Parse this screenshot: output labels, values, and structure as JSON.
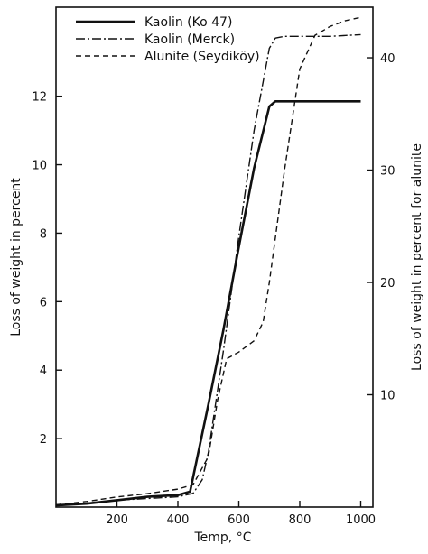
{
  "chart_data": {
    "type": "line",
    "xlabel": "Temp, °C",
    "ylabel_left": "Loss of weight in percent",
    "ylabel_right": "Loss of weight in percent for alunite",
    "xlim": [
      0,
      1040
    ],
    "ylim_left": [
      0,
      14.6
    ],
    "ylim_right": [
      0,
      44.5
    ],
    "x_ticks": [
      200,
      400,
      600,
      800,
      1000
    ],
    "y_ticks_left": [
      2,
      4,
      6,
      8,
      10,
      12
    ],
    "y_ticks_right": [
      10,
      20,
      30,
      40
    ],
    "grid": false,
    "legend_position": "top-left",
    "series": [
      {
        "name": "Kaolin (Ko 47)",
        "axis": "left",
        "style": "solid",
        "x": [
          0,
          100,
          200,
          300,
          400,
          440,
          500,
          550,
          600,
          650,
          700,
          720,
          750,
          800,
          900,
          1000
        ],
        "y": [
          0.05,
          0.1,
          0.2,
          0.3,
          0.35,
          0.45,
          3.0,
          5.2,
          7.6,
          9.9,
          11.7,
          11.85,
          11.85,
          11.85,
          11.85,
          11.85
        ]
      },
      {
        "name": "Kaolin (Merck)",
        "axis": "left",
        "style": "dashdot",
        "x": [
          0,
          100,
          200,
          300,
          400,
          450,
          480,
          500,
          550,
          600,
          650,
          700,
          720,
          750,
          800,
          900,
          1000
        ],
        "y": [
          0.05,
          0.1,
          0.2,
          0.25,
          0.3,
          0.4,
          0.8,
          1.6,
          4.6,
          7.9,
          11.0,
          13.4,
          13.7,
          13.75,
          13.75,
          13.75,
          13.8
        ]
      },
      {
        "name": "Alunite (Seydiköy)",
        "axis": "right",
        "style": "dashed",
        "x": [
          0,
          100,
          200,
          300,
          400,
          450,
          500,
          530,
          560,
          600,
          650,
          680,
          700,
          750,
          800,
          850,
          900,
          950,
          1000
        ],
        "y": [
          0.2,
          0.5,
          0.9,
          1.2,
          1.6,
          2.0,
          4.5,
          9.5,
          13.2,
          13.8,
          14.8,
          16.5,
          20.0,
          30.0,
          39.0,
          42.0,
          42.8,
          43.3,
          43.6
        ]
      }
    ]
  }
}
